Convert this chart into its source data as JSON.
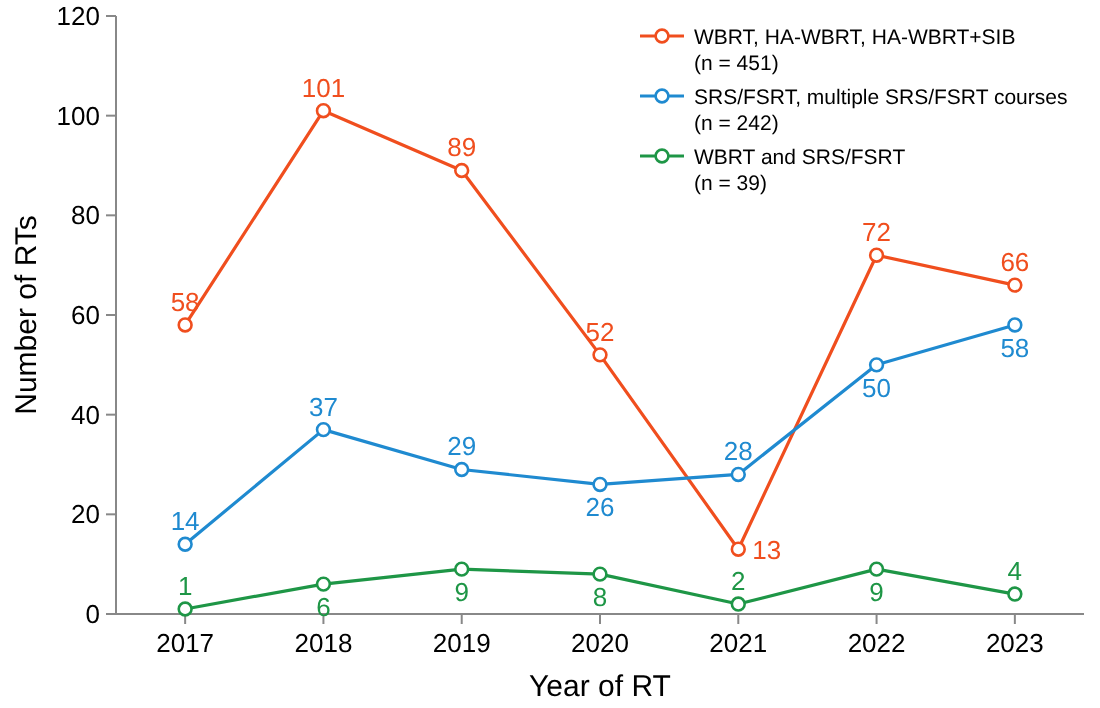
{
  "chart_data": {
    "type": "line",
    "xlabel": "Year of RT",
    "ylabel": "Number of RTs",
    "categories": [
      "2017",
      "2018",
      "2019",
      "2020",
      "2021",
      "2022",
      "2023"
    ],
    "ylim": [
      0,
      120
    ],
    "yticks": [
      0,
      20,
      40,
      60,
      80,
      100,
      120
    ],
    "grid": false,
    "legend": "top right",
    "marker": "circle",
    "line_style": "solid",
    "data_labels": true,
    "series": [
      {
        "name": "WBRT, HA-WBRT, HA-WBRT+SIB\n(n = 451)",
        "color": "#f04e1e",
        "values": [
          58,
          101,
          89,
          52,
          13,
          72,
          66
        ]
      },
      {
        "name": "SRS/FSRT, multiple SRS/FSRT courses\n(n = 242)",
        "color": "#1f8ad0",
        "values": [
          14,
          37,
          29,
          26,
          28,
          50,
          58
        ]
      },
      {
        "name": "WBRT and SRS/FSRT\n(n = 39)",
        "color": "#1e9646",
        "values": [
          1,
          6,
          9,
          8,
          2,
          9,
          4
        ]
      }
    ]
  }
}
